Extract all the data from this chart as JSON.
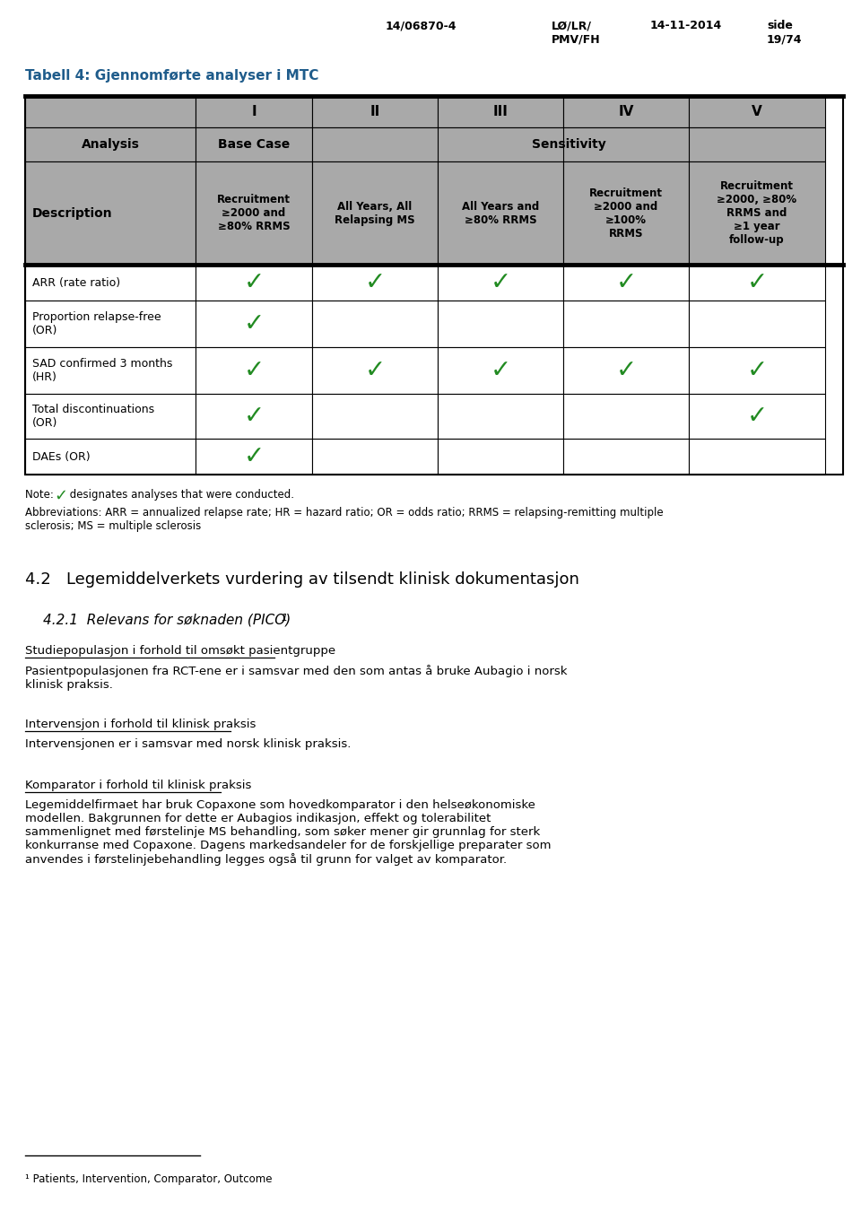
{
  "header_line1": "14/06870-4",
  "header_line2": "LØ/LR/",
  "header_line3": "PMV/FH",
  "header_date": "14-11-2014",
  "header_side": "side",
  "header_page": "19/74",
  "table_title": "Tabell 4: Gjennomførte analyser i MTC",
  "col_headers_row1": [
    "",
    "I",
    "II",
    "III",
    "IV",
    "V"
  ],
  "description_col": "Description",
  "col_desc": [
    "Recruitment\n≥2000 and\n≥80% RRMS",
    "All Years, All\nRelapsing MS",
    "All Years and\n≥80% RRMS",
    "Recruitment\n≥2000 and\n≥100%\nRRMS",
    "Recruitment\n≥2000, ≥80%\nRRMS and\n≥1 year\nfollow-up"
  ],
  "rows": [
    {
      "label": "ARR (rate ratio)",
      "checks": [
        true,
        true,
        true,
        true,
        true
      ]
    },
    {
      "label": "Proportion relapse-free\n(OR)",
      "checks": [
        true,
        false,
        false,
        false,
        false
      ]
    },
    {
      "label": "SAD confirmed 3 months\n(HR)",
      "checks": [
        true,
        true,
        true,
        true,
        true
      ]
    },
    {
      "label": "Total discontinuations\n(OR)",
      "checks": [
        true,
        false,
        false,
        false,
        true
      ]
    },
    {
      "label": "DAEs (OR)",
      "checks": [
        true,
        false,
        false,
        false,
        false
      ]
    }
  ],
  "abbrev_text": "Abbreviations: ARR = annualized relapse rate; HR = hazard ratio; OR = odds ratio; RRMS = relapsing-remitting multiple\nsclerosis; MS = multiple sclerosis",
  "section_42": "4.2   Legemiddelverkets vurdering av tilsendt klinisk dokumentasjon",
  "underline1": "Studiepopulasjon i forhold til omsøkt pasientgruppe",
  "para1": "Pasientpopulasjonen fra RCT-ene er i samsvar med den som antas å bruke Aubagio i norsk\nklinisk praksis.",
  "underline2": "Intervensjon i forhold til klinisk praksis",
  "para2": "Intervensjonen er i samsvar med norsk klinisk praksis.",
  "underline3": "Komparator i forhold til klinisk praksis",
  "para3": "Legemiddelfirmaet har bruk Copaxone som hovedkomparator i den helseøkonomiske\nmodellen. Bakgrunnen for dette er Aubagios indikasjon, effekt og tolerabilitet\nsammenlignet med førstelinje MS behandling, som søker mener gir grunnlag for sterk\nkonkurranse med Copaxone. Dagens markedsandeler for de forskjellige preparater som\nanvendes i førstelinjebehandling legges også til grunn for valget av komparator.",
  "footnote_line": "¹ Patients, Intervention, Comparator, Outcome",
  "check_color": "#228B22",
  "header_bg": "#A9A9A9",
  "table_border_color": "#000000",
  "title_color": "#1F5C8B",
  "bg_color": "#FFFFFF"
}
